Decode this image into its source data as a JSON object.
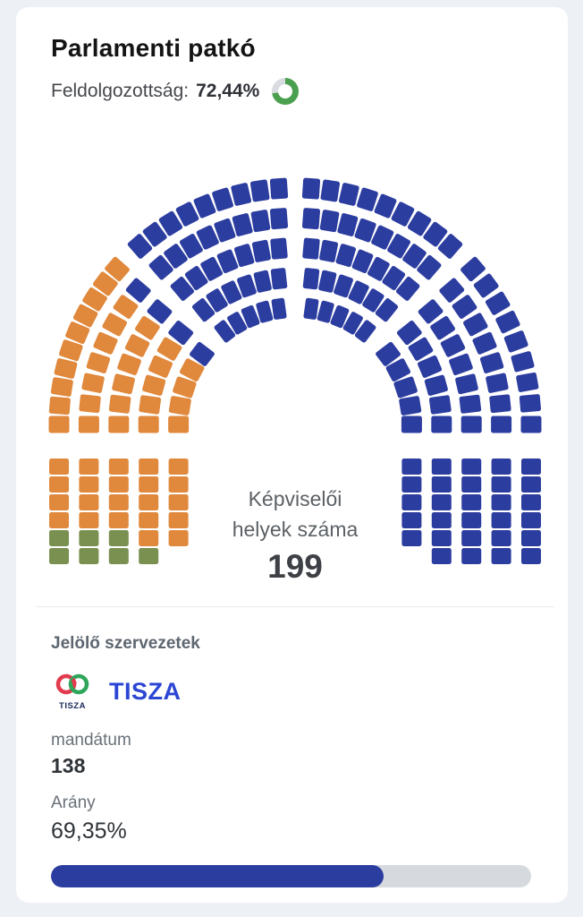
{
  "card": {
    "title": "Parlamenti patkó",
    "processed_label": "Feldolgozottság:",
    "processed_value": "72,44%",
    "processed_percent": 72.44
  },
  "chart_data": {
    "type": "parliament-hemicycle",
    "title": "Parlamenti patkó",
    "total_seats": 199,
    "center_label_line1": "Képviselői",
    "center_label_line2": "helyek száma",
    "center_value": "199",
    "legend_position": "none",
    "series": [
      {
        "name": "",
        "color": "#7a9050",
        "seats": 7
      },
      {
        "name": "",
        "color": "#e0883c",
        "seats": 54
      },
      {
        "name": "TISZA",
        "color": "#2c3da0",
        "seats": 138
      }
    ]
  },
  "details": {
    "section_label": "Jelölő szervezetek",
    "party": {
      "name": "TISZA",
      "logo_text": "TISZA",
      "logo_red": "#e23b4e",
      "logo_green": "#2ea65a",
      "logo_text_color": "#1c2b5e"
    },
    "mandate_label": "mandátum",
    "mandate_value": "138",
    "share_label": "Arány",
    "share_value": "69,35%",
    "share_percent": 69.35
  },
  "colors": {
    "donut_fill": "#4aa04e",
    "donut_track": "#d8dce0",
    "bar_fill": "#2c3da0",
    "bar_track": "#d6dade",
    "background": "#edf0f5",
    "card": "#ffffff"
  }
}
